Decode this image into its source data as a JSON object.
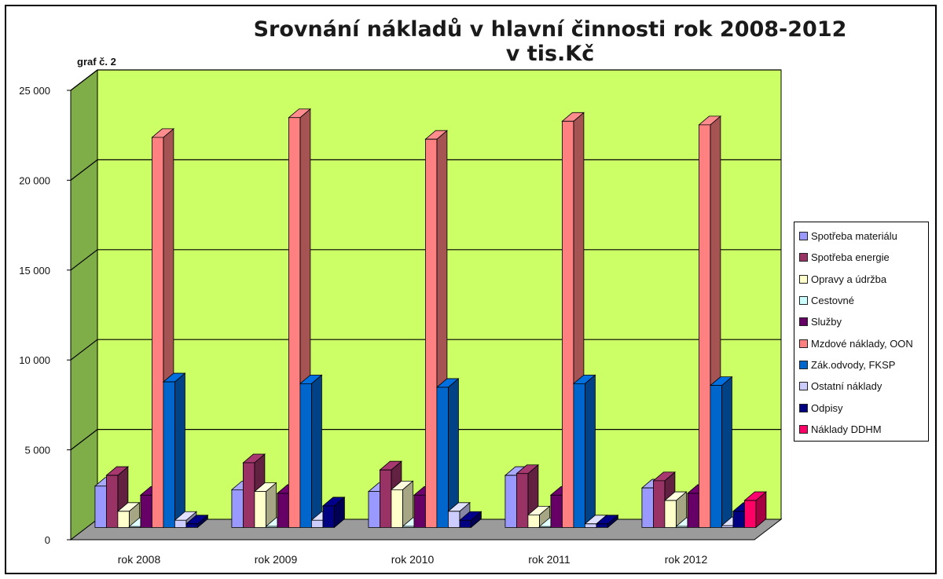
{
  "title": "Srovnání nákladů v hlavní činnosti rok 2008-2012 v tis.Kč",
  "note": "graf č. 2",
  "colors": {
    "wall": "#ccff66",
    "side_wall": "#7fae49",
    "floor": "#9b9b9b",
    "grid": "#000000"
  },
  "chart_data": {
    "type": "bar",
    "title": "Srovnání nákladů v hlavní činnosti rok 2008-2012 v tis.Kč",
    "xlabel": "",
    "ylabel": "",
    "ylim": [
      0,
      25000
    ],
    "grid": true,
    "legend_position": "right",
    "y_ticks": [
      "0",
      "5 000",
      "10 000",
      "15 000",
      "20 000",
      "25 000"
    ],
    "y_tick_values": [
      0,
      5000,
      10000,
      15000,
      20000,
      25000
    ],
    "categories": [
      "rok 2008",
      "rok 2009",
      "rok 2010",
      "rok 2011",
      "rok 2012"
    ],
    "series": [
      {
        "name": "Spotřeba materiálu",
        "color": "#9999ff",
        "values": [
          2300,
          2100,
          2000,
          2900,
          2200
        ]
      },
      {
        "name": "Spotřeba energie",
        "color": "#993366",
        "values": [
          2900,
          3600,
          3200,
          3000,
          2600
        ]
      },
      {
        "name": "Opravy a údržba",
        "color": "#ffffcc",
        "values": [
          900,
          2000,
          2100,
          700,
          1500
        ]
      },
      {
        "name": "Cestovné",
        "color": "#ccffff",
        "values": [
          50,
          60,
          60,
          50,
          60
        ]
      },
      {
        "name": "Služby",
        "color": "#660066",
        "values": [
          1800,
          1900,
          1800,
          1800,
          1900
        ]
      },
      {
        "name": "Mzdové náklady, OON",
        "color": "#ff8080",
        "values": [
          21700,
          22800,
          21600,
          22600,
          22400
        ]
      },
      {
        "name": "Zák.odvody, FKSP",
        "color": "#0066cc",
        "values": [
          8100,
          8000,
          7800,
          8000,
          7900
        ]
      },
      {
        "name": "Ostatní náklady",
        "color": "#ccccff",
        "values": [
          400,
          400,
          900,
          200,
          100
        ]
      },
      {
        "name": "Odpisy",
        "color": "#000080",
        "values": [
          200,
          1200,
          400,
          200,
          900
        ]
      },
      {
        "name": "Náklady DDHM",
        "color": "#ff0066",
        "values": [
          0,
          0,
          0,
          0,
          1500
        ]
      }
    ]
  }
}
